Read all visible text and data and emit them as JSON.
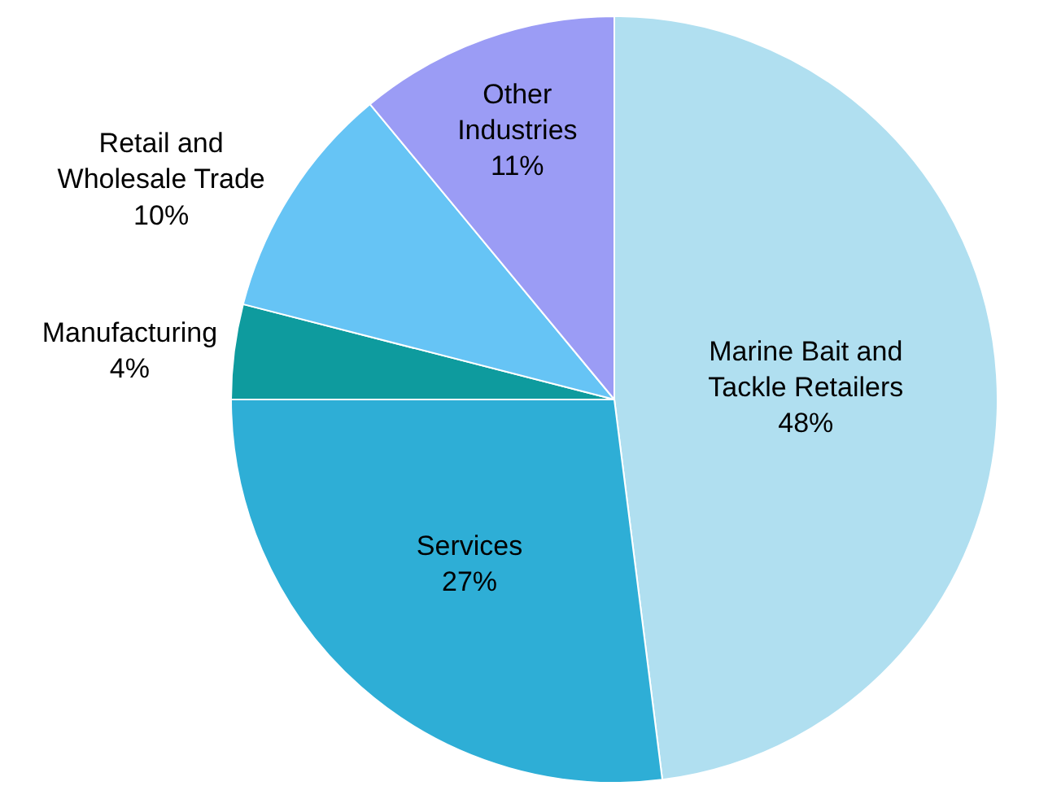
{
  "chart_data": {
    "type": "pie",
    "categories": [
      "Marine Bait and\nTackle Retailers",
      "Services",
      "Manufacturing",
      "Retail and\nWholesale Trade",
      "Other\nIndustries"
    ],
    "values": [
      48,
      27,
      4,
      10,
      11
    ],
    "value_labels": [
      "48%",
      "27%",
      "4%",
      "10%",
      "11%"
    ],
    "colors": [
      "#b0dff0",
      "#2eaed6",
      "#0e9b9e",
      "#66c4f5",
      "#9b9cf5"
    ],
    "legend": false
  }
}
